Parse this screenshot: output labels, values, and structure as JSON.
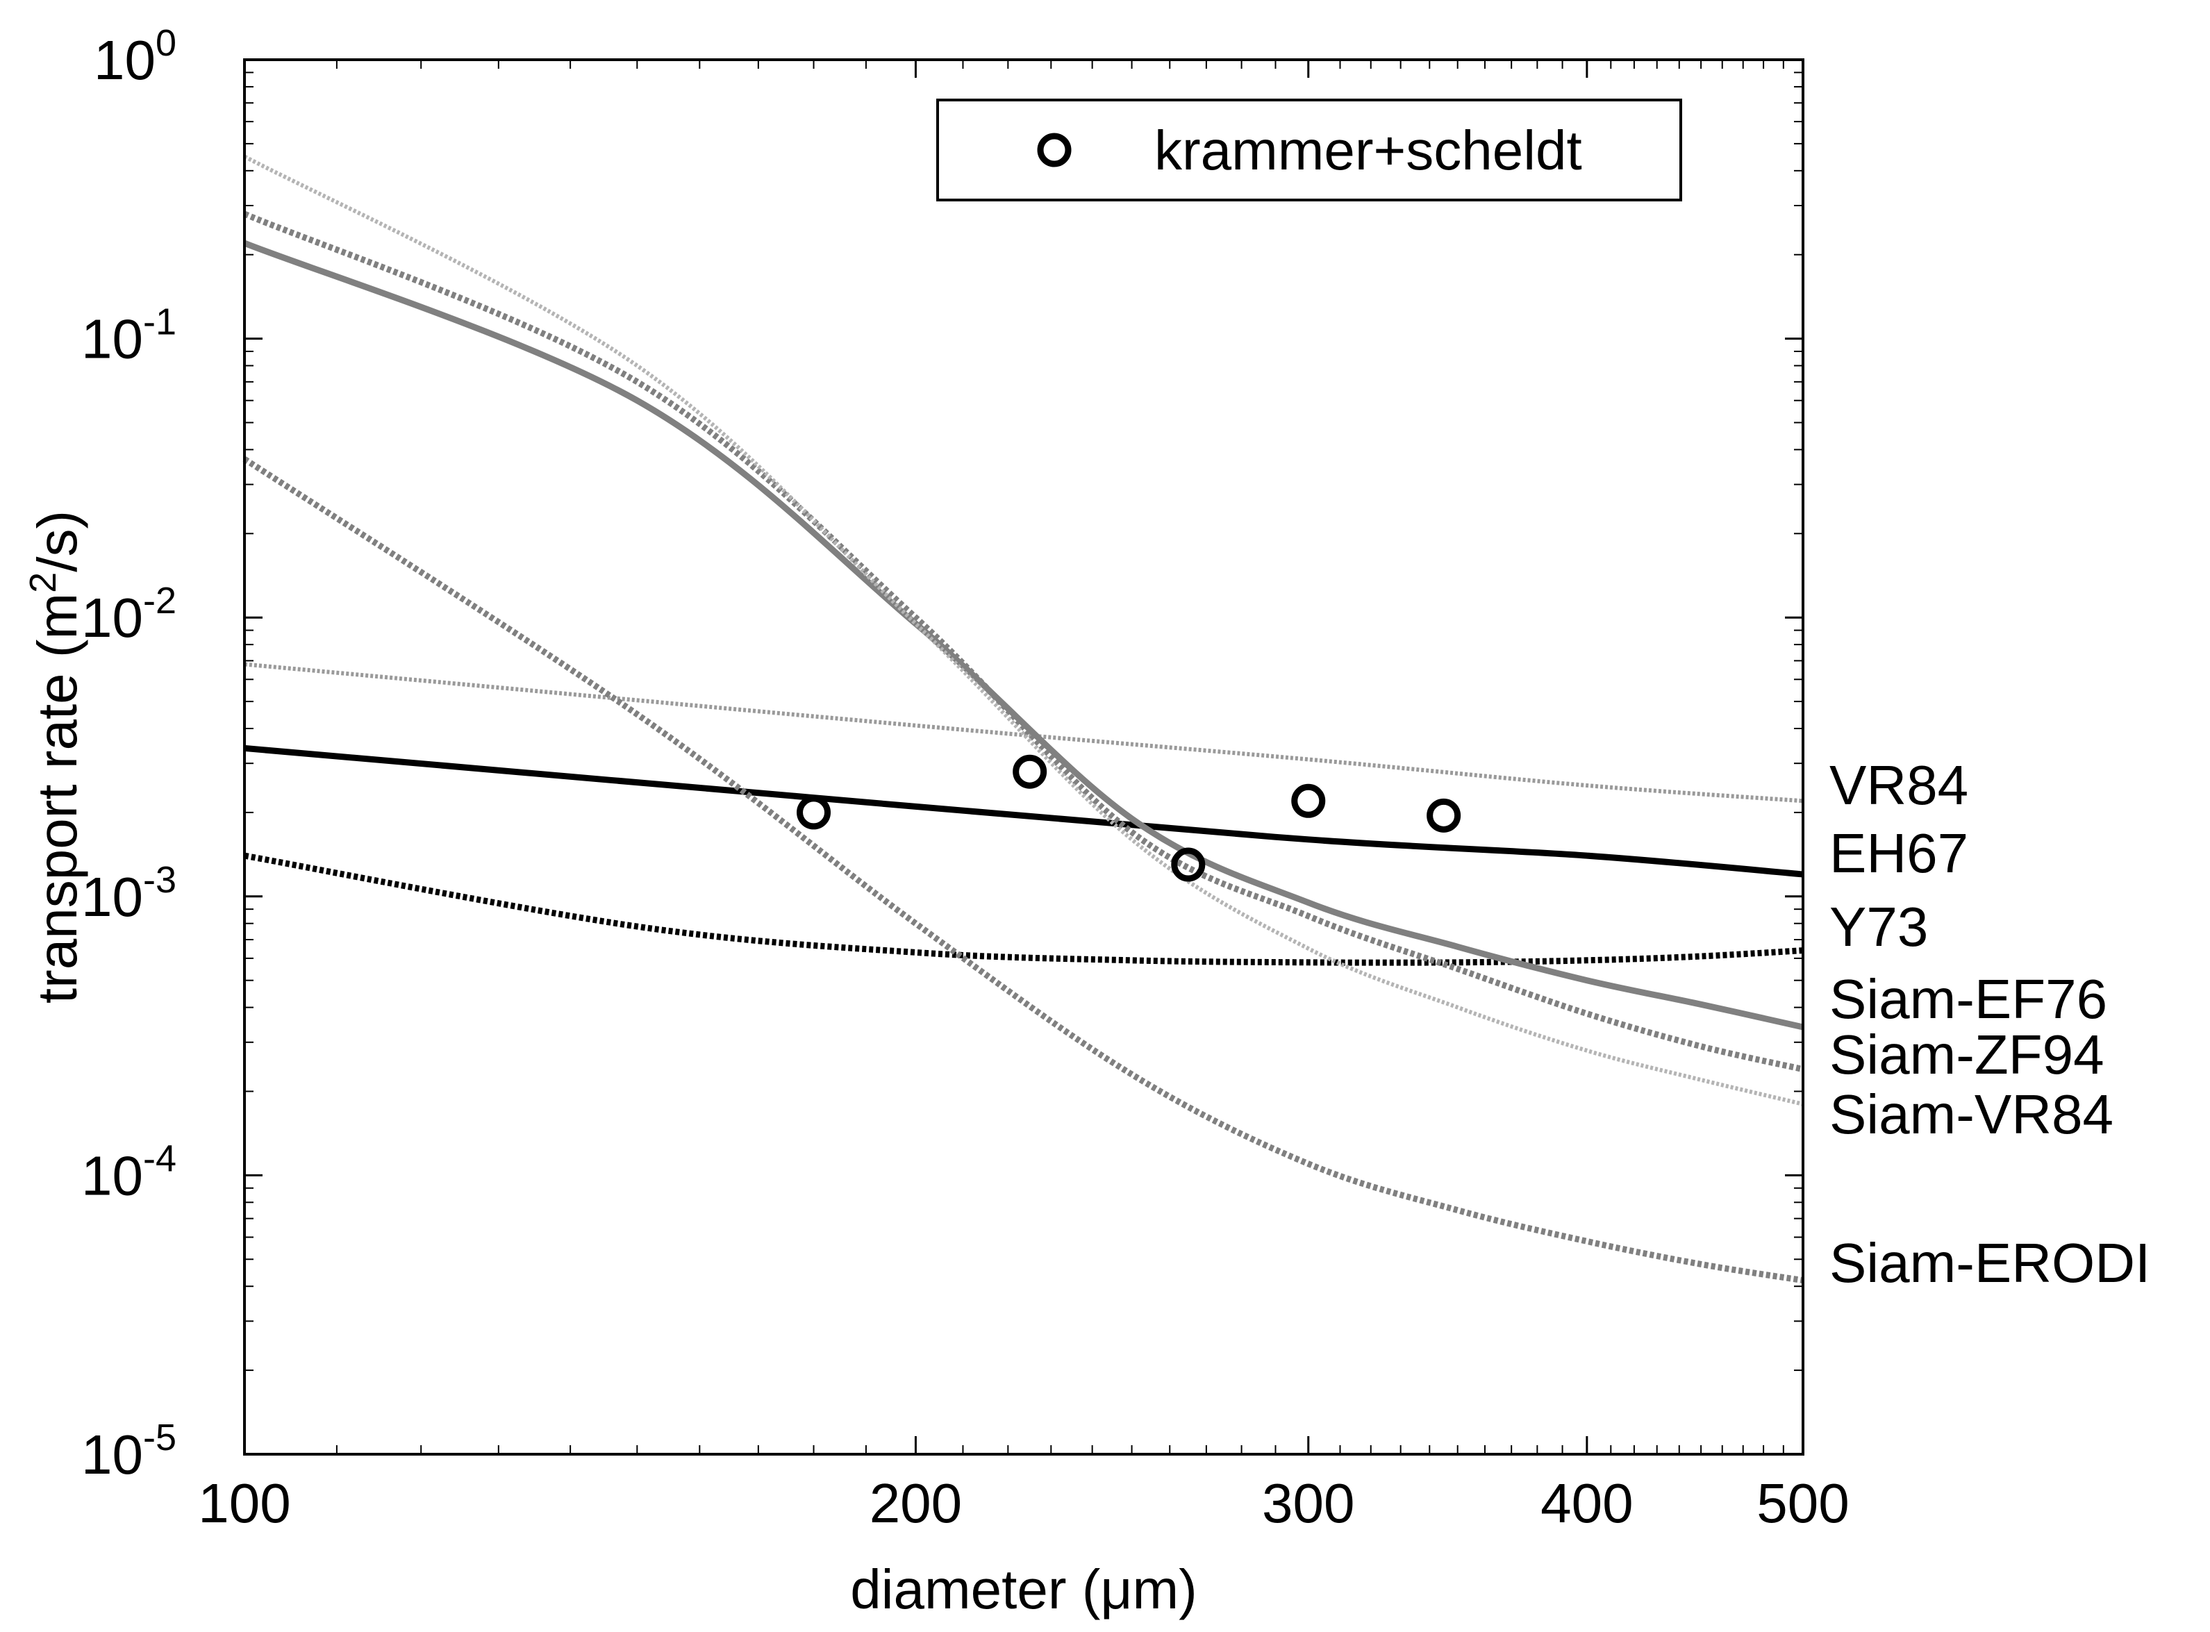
{
  "chart_data": {
    "type": "line",
    "xlabel": "diameter (μm)",
    "ylabel_parts": {
      "main": "transport rate (m",
      "sup": "2",
      "tail": "/s)"
    },
    "xscale": "log",
    "yscale": "log",
    "xlim": [
      100,
      500
    ],
    "ylim": [
      1e-05,
      1
    ],
    "xticks": [
      {
        "value": 100,
        "label": "100"
      },
      {
        "value": 200,
        "label": "200"
      },
      {
        "value": 300,
        "label": "300"
      },
      {
        "value": 400,
        "label": "400"
      },
      {
        "value": 500,
        "label": "500"
      }
    ],
    "yticks": [
      {
        "value": 1e-05,
        "base": "10",
        "exp": "-5"
      },
      {
        "value": 0.0001,
        "base": "10",
        "exp": "-4"
      },
      {
        "value": 0.001,
        "base": "10",
        "exp": "-3"
      },
      {
        "value": 0.01,
        "base": "10",
        "exp": "-2"
      },
      {
        "value": 0.1,
        "base": "10",
        "exp": "-1"
      },
      {
        "value": 1,
        "base": "10",
        "exp": "0"
      }
    ],
    "legend": {
      "position": "top-right",
      "entries": [
        "krammer+scheldt"
      ]
    },
    "series": [
      {
        "name": "VR84",
        "color": "#9a9a9a",
        "style": "dotted",
        "x": [
          100,
          200,
          300,
          400,
          500
        ],
        "y": [
          0.0068,
          0.0041,
          0.0031,
          0.0025,
          0.0022
        ]
      },
      {
        "name": "EH67",
        "color": "#000000",
        "style": "solid",
        "x": [
          100,
          200,
          300,
          400,
          500
        ],
        "y": [
          0.0034,
          0.0021,
          0.0016,
          0.0014,
          0.0012
        ]
      },
      {
        "name": "Y73",
        "color": "#000000",
        "style": "dotted",
        "x": [
          100,
          150,
          200,
          250,
          300,
          350,
          400,
          450,
          500
        ],
        "y": [
          0.0014,
          0.00078,
          0.00063,
          0.00059,
          0.00058,
          0.00058,
          0.00059,
          0.00061,
          0.00064
        ]
      },
      {
        "name": "Siam-EF76",
        "color": "#808080",
        "style": "solid",
        "x": [
          100,
          150,
          200,
          250,
          300,
          350,
          400,
          450,
          500
        ],
        "y": [
          0.22,
          0.06,
          0.0095,
          0.0019,
          0.00095,
          0.00066,
          0.0005,
          0.00041,
          0.00034
        ]
      },
      {
        "name": "Siam-ZF94",
        "color": "#808080",
        "style": "dotted",
        "x": [
          100,
          150,
          200,
          250,
          300,
          350,
          400,
          450,
          500
        ],
        "y": [
          0.28,
          0.07,
          0.01,
          0.0017,
          0.00085,
          0.00055,
          0.00038,
          0.00029,
          0.00024
        ]
      },
      {
        "name": "Siam-VR84",
        "color": "#b4b4b4",
        "style": "dotted",
        "x": [
          100,
          150,
          200,
          250,
          300,
          350,
          400,
          450,
          500
        ],
        "y": [
          0.45,
          0.08,
          0.0095,
          0.0016,
          0.00065,
          0.0004,
          0.00028,
          0.00022,
          0.00018
        ]
      },
      {
        "name": "Siam-ERODI",
        "color": "#808080",
        "style": "dotted",
        "x": [
          100,
          150,
          200,
          250,
          300,
          350,
          400,
          450,
          500
        ],
        "y": [
          0.037,
          0.0045,
          0.0008,
          0.00023,
          0.00011,
          7.5e-05,
          5.8e-05,
          4.8e-05,
          4.2e-05
        ]
      },
      {
        "name": "krammer+scheldt",
        "color": "#000000",
        "style": "markers",
        "x": [
          180,
          225,
          265,
          300,
          345
        ],
        "y": [
          0.002,
          0.0028,
          0.0013,
          0.0022,
          0.00195
        ]
      }
    ]
  }
}
